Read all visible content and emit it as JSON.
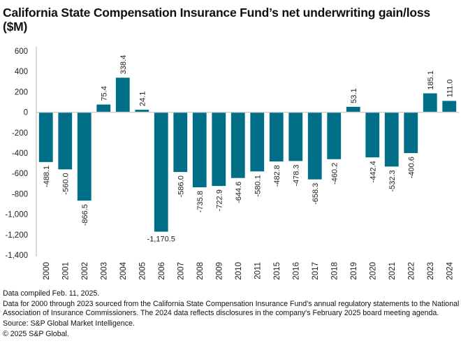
{
  "chart_data": {
    "type": "bar",
    "title": "California State Compensation Insurance Fund’s net underwriting gain/loss ($M)",
    "xlabel": "",
    "ylabel": "",
    "ylim": [
      -1400,
      600
    ],
    "yticks": [
      600,
      400,
      200,
      0,
      -200,
      -400,
      -600,
      -800,
      -1000,
      -1200,
      -1400
    ],
    "ytick_labels": [
      "600",
      "400",
      "200",
      "0",
      "-200",
      "-400",
      "-600",
      "-800",
      "-1,000",
      "-1,200",
      "-1,400"
    ],
    "grid": false,
    "legend": "none",
    "bar_color": "#006e87",
    "categories": [
      "2000",
      "2001",
      "2002",
      "2003",
      "2004",
      "2005",
      "2006",
      "2007",
      "2008",
      "2009",
      "2010",
      "2011",
      "2015",
      "2016",
      "2017",
      "2018",
      "2019",
      "2020",
      "2021",
      "2022",
      "2023",
      "2024"
    ],
    "values": [
      -488.1,
      -560.0,
      -866.5,
      75.4,
      338.4,
      24.1,
      -1170.5,
      -586.0,
      -735.8,
      -722.9,
      -644.6,
      -580.1,
      -482.8,
      -478.3,
      -658.3,
      -460.2,
      53.1,
      -442.4,
      -532.3,
      -400.6,
      185.1,
      111.0
    ],
    "data_labels": [
      "-488.1",
      "-560.0",
      "-866.5",
      "75.4",
      "338.4",
      "24.1",
      "-1,170.5",
      "-586.0",
      "-735.8",
      "-722.9",
      "-644.6",
      "-580.1",
      "-482.8",
      "-478.3",
      "-658.3",
      "-460.2",
      "53.1",
      "-442.4",
      "-532.3",
      "-400.6",
      "185.1",
      "111.0"
    ]
  },
  "notes": {
    "compiled": "Data compiled Feb. 11, 2025.",
    "description": "Data for 2000 through 2023 sourced from the California State Compensation Insurance Fund's annual regulatory statements to the National Association of Insurance Commissioners. The 2024 data reflects disclosures in the company's February 2025 board meeting agenda.",
    "source": "Source: S&P Global Market Intelligence.",
    "copyright": "© 2025 S&P Global."
  }
}
